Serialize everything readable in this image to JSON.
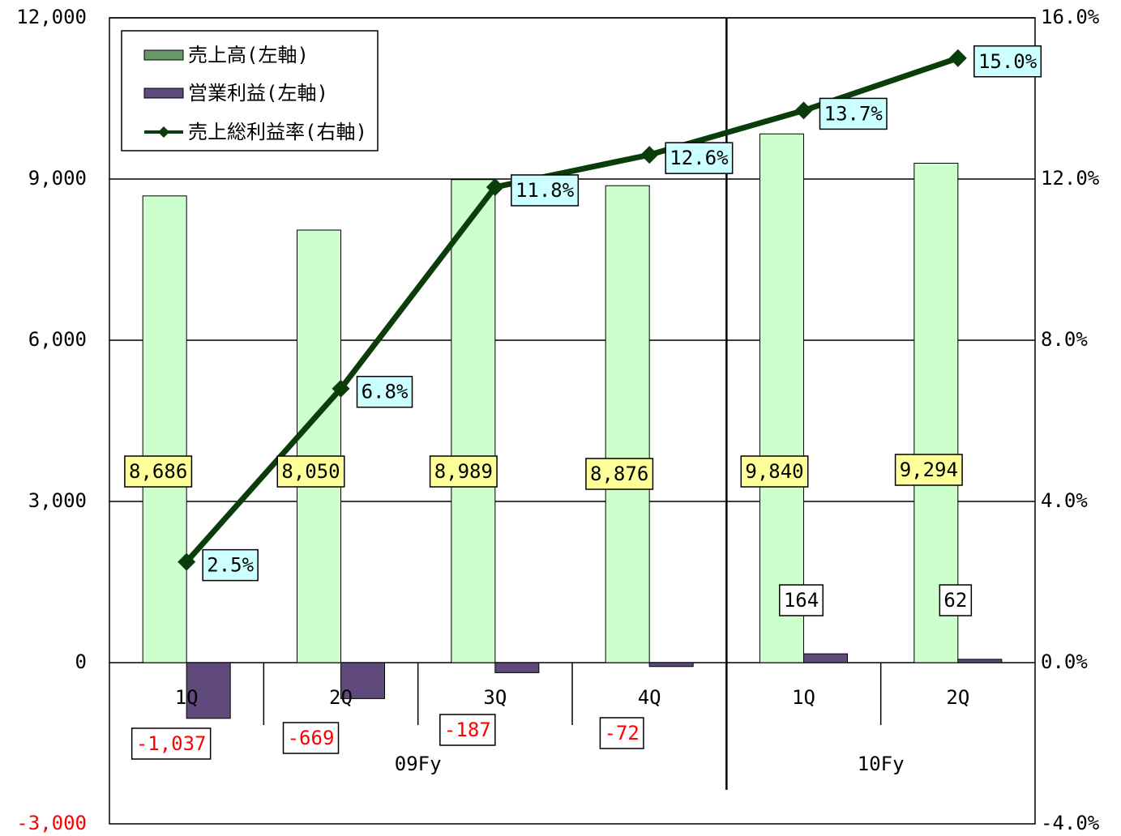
{
  "chart_data": {
    "type": "bar+line",
    "groups": [
      {
        "label": "09Fy",
        "categories": [
          "1Q",
          "2Q",
          "3Q",
          "4Q"
        ]
      },
      {
        "label": "10Fy",
        "categories": [
          "1Q",
          "2Q"
        ]
      }
    ],
    "categories": [
      "1Q",
      "2Q",
      "3Q",
      "4Q",
      "1Q",
      "2Q"
    ],
    "left_axis": {
      "ylim": [
        -3000,
        12000
      ],
      "ticks": [
        -3000,
        0,
        3000,
        6000,
        9000,
        12000
      ],
      "tick_labels": [
        "-3,000",
        "0",
        "3,000",
        "6,000",
        "9,000",
        "12,000"
      ]
    },
    "right_axis": {
      "ylim": [
        -4.0,
        16.0
      ],
      "ticks": [
        -4.0,
        0.0,
        4.0,
        8.0,
        12.0,
        16.0
      ],
      "tick_labels": [
        "-4.0%",
        "0.0%",
        "4.0%",
        "8.0%",
        "12.0%",
        "16.0%"
      ]
    },
    "series": [
      {
        "name": "売上高(左軸)",
        "type": "bar",
        "axis": "left",
        "color": "#ccffcc",
        "legend_color": "#669966",
        "values": [
          8686,
          8050,
          8989,
          8876,
          9840,
          9294
        ],
        "labels": [
          "8,686",
          "8,050",
          "8,989",
          "8,876",
          "9,840",
          "9,294"
        ],
        "label_bg": "#ffff99"
      },
      {
        "name": "営業利益(左軸)",
        "type": "bar",
        "axis": "left",
        "color": "#604a7b",
        "values": [
          -1037,
          -669,
          -187,
          -72,
          164,
          62
        ],
        "labels": [
          "-1,037",
          "-669",
          "-187",
          "-72",
          "164",
          "62"
        ],
        "label_bg": "#ffffff"
      },
      {
        "name": "売上総利益率(右軸)",
        "type": "line",
        "axis": "right",
        "color": "#0b3d0b",
        "marker": "diamond",
        "values": [
          2.5,
          6.8,
          11.8,
          12.6,
          13.7,
          15.0
        ],
        "labels": [
          "2.5%",
          "6.8%",
          "11.8%",
          "12.6%",
          "13.7%",
          "15.0%"
        ],
        "label_bg": "#ccffff"
      }
    ],
    "grid": true,
    "legend": "top-left"
  }
}
